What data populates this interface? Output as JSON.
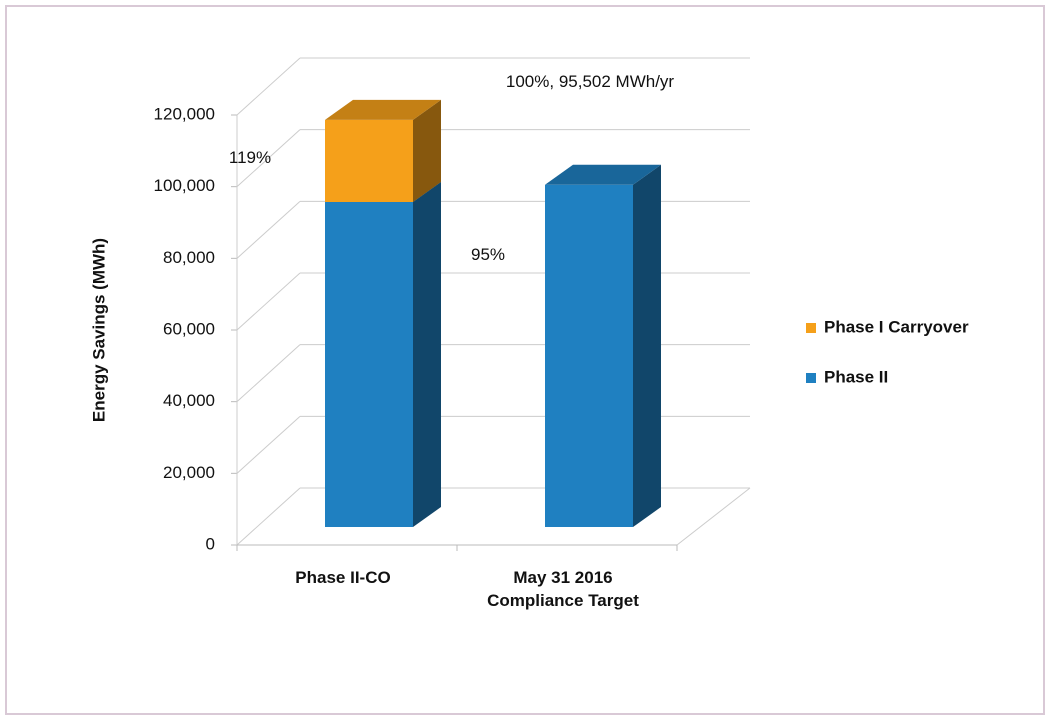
{
  "chart_data": {
    "type": "bar3d_stacked",
    "y_label": "Energy Savings (MWh)",
    "categories": [
      "Phase II-CO",
      "May 31 2016 Compliance Target"
    ],
    "series": [
      {
        "name": "Phase II",
        "color": "#1f80c1",
        "values": [
          90700,
          95502
        ]
      },
      {
        "name": "Phase I Carryover",
        "color": "#f5a01a",
        "values": [
          22900,
          null
        ]
      }
    ],
    "ylim": [
      0,
      120000
    ],
    "yticks": [
      0,
      {
        "value": 20000,
        "label": "20,000"
      },
      {
        "value": 40000,
        "label": "40,000"
      },
      {
        "value": 60000,
        "label": "60,000"
      },
      {
        "value": 80000,
        "label": "80,000"
      },
      {
        "value": 100000,
        "label": "100,000"
      },
      {
        "value": 120000,
        "label": "120,000"
      }
    ],
    "annotations": [
      "119%",
      "95%",
      "100%, 95,502 MWh/yr"
    ],
    "grid": true,
    "legend": "right"
  }
}
